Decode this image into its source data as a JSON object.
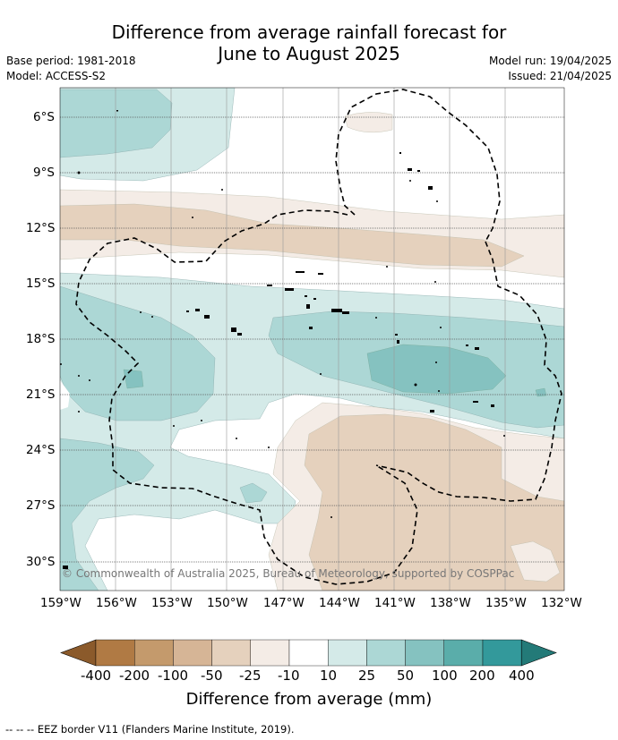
{
  "title_line1": "Difference from average rainfall forecast for",
  "title_line2": "June to August 2025",
  "base_period": "Base period: 1981-2018",
  "model": "Model: ACCESS-S2",
  "model_run": "Model run: 19/04/2025",
  "issued": "Issued: 21/04/2025",
  "lat_ticks": [
    "6°S",
    "9°S",
    "12°S",
    "15°S",
    "18°S",
    "21°S",
    "24°S",
    "27°S",
    "30°S"
  ],
  "lon_ticks": [
    "159°W",
    "156°W",
    "153°W",
    "150°W",
    "147°W",
    "144°W",
    "141°W",
    "138°W",
    "135°W",
    "132°W"
  ],
  "copyright": "© Commonwealth of Australia 2025, Bureau of Meteorology, supported by COSPPac",
  "colorbar": {
    "labels": [
      "-400",
      "-200",
      "-100",
      "-50",
      "-25",
      "-10",
      "10",
      "25",
      "50",
      "100",
      "200",
      "400"
    ],
    "colors": [
      "#8b5a2b",
      "#b07a44",
      "#c49a6c",
      "#d6b596",
      "#e5d1bd",
      "#f4ece6",
      "#ffffff",
      "#d4eae8",
      "#acd7d5",
      "#85c2c0",
      "#5aadaa",
      "#33999b",
      "#237a78"
    ],
    "title": "Difference from average (mm)"
  },
  "footer": "-- -- -- EEZ border V11 (Flanders Marine Institute, 2019).",
  "colors": {
    "eez_line": "#000000",
    "gridline": "#808080"
  }
}
